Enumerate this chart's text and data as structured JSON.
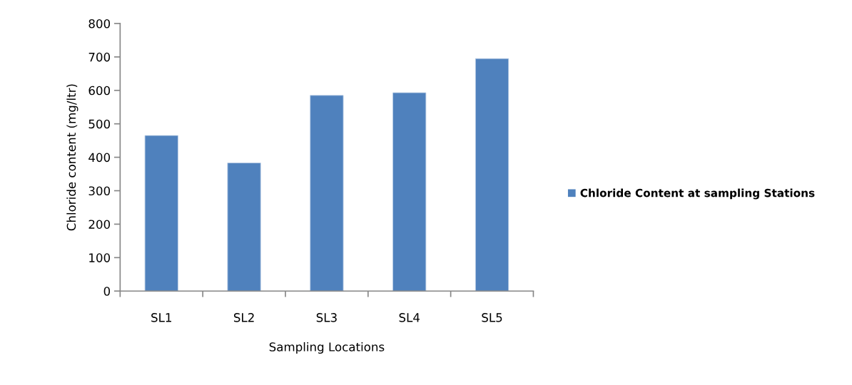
{
  "chart_data": {
    "type": "bar",
    "xlabel": "Sampling Locations",
    "ylabel": "Chloride content (mg/ltr)",
    "categories": [
      "SL1",
      "SL2",
      "SL3",
      "SL4",
      "SL5"
    ],
    "series": [
      {
        "name": "Chloride Content at sampling Stations",
        "color": "#4f81bd",
        "values": [
          465,
          383,
          585,
          593,
          695
        ]
      }
    ],
    "ylim": [
      0,
      800
    ],
    "yticks": [
      0,
      100,
      200,
      300,
      400,
      500,
      600,
      700,
      800
    ],
    "grid": false,
    "legend": "right"
  }
}
